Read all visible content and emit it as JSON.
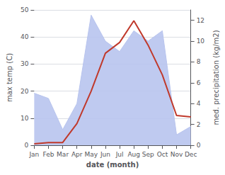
{
  "chart_data": {
    "type": "line",
    "xlabel": "date (month)",
    "ylabel": "max temp (C)",
    "y2label": "med. precipitation (kg/m2)",
    "categories": [
      "Jan",
      "Feb",
      "Mar",
      "Apr",
      "May",
      "Jun",
      "Jul",
      "Aug",
      "Sep",
      "Oct",
      "Nov",
      "Dec"
    ],
    "series": [
      {
        "type": "area",
        "axis": "y2",
        "color": "#b8c4ee",
        "values": [
          5.0,
          4.5,
          1.5,
          4.0,
          12.5,
          10.0,
          9.0,
          11.0,
          10.0,
          11.0,
          1.0,
          1.8
        ]
      },
      {
        "type": "line",
        "color": "#c0392b",
        "values": [
          0.5,
          1.0,
          1.0,
          8.0,
          20.0,
          34.0,
          38.0,
          46.0,
          37.0,
          26.0,
          11.0,
          10.5
        ]
      }
    ],
    "ylim": [
      0,
      50
    ],
    "yticks": [
      0,
      10,
      20,
      30,
      40,
      50
    ],
    "y2lim": [
      0,
      13.0
    ],
    "y2ticks": [
      0,
      2,
      4,
      6,
      8,
      10,
      12
    ],
    "grid": true
  }
}
